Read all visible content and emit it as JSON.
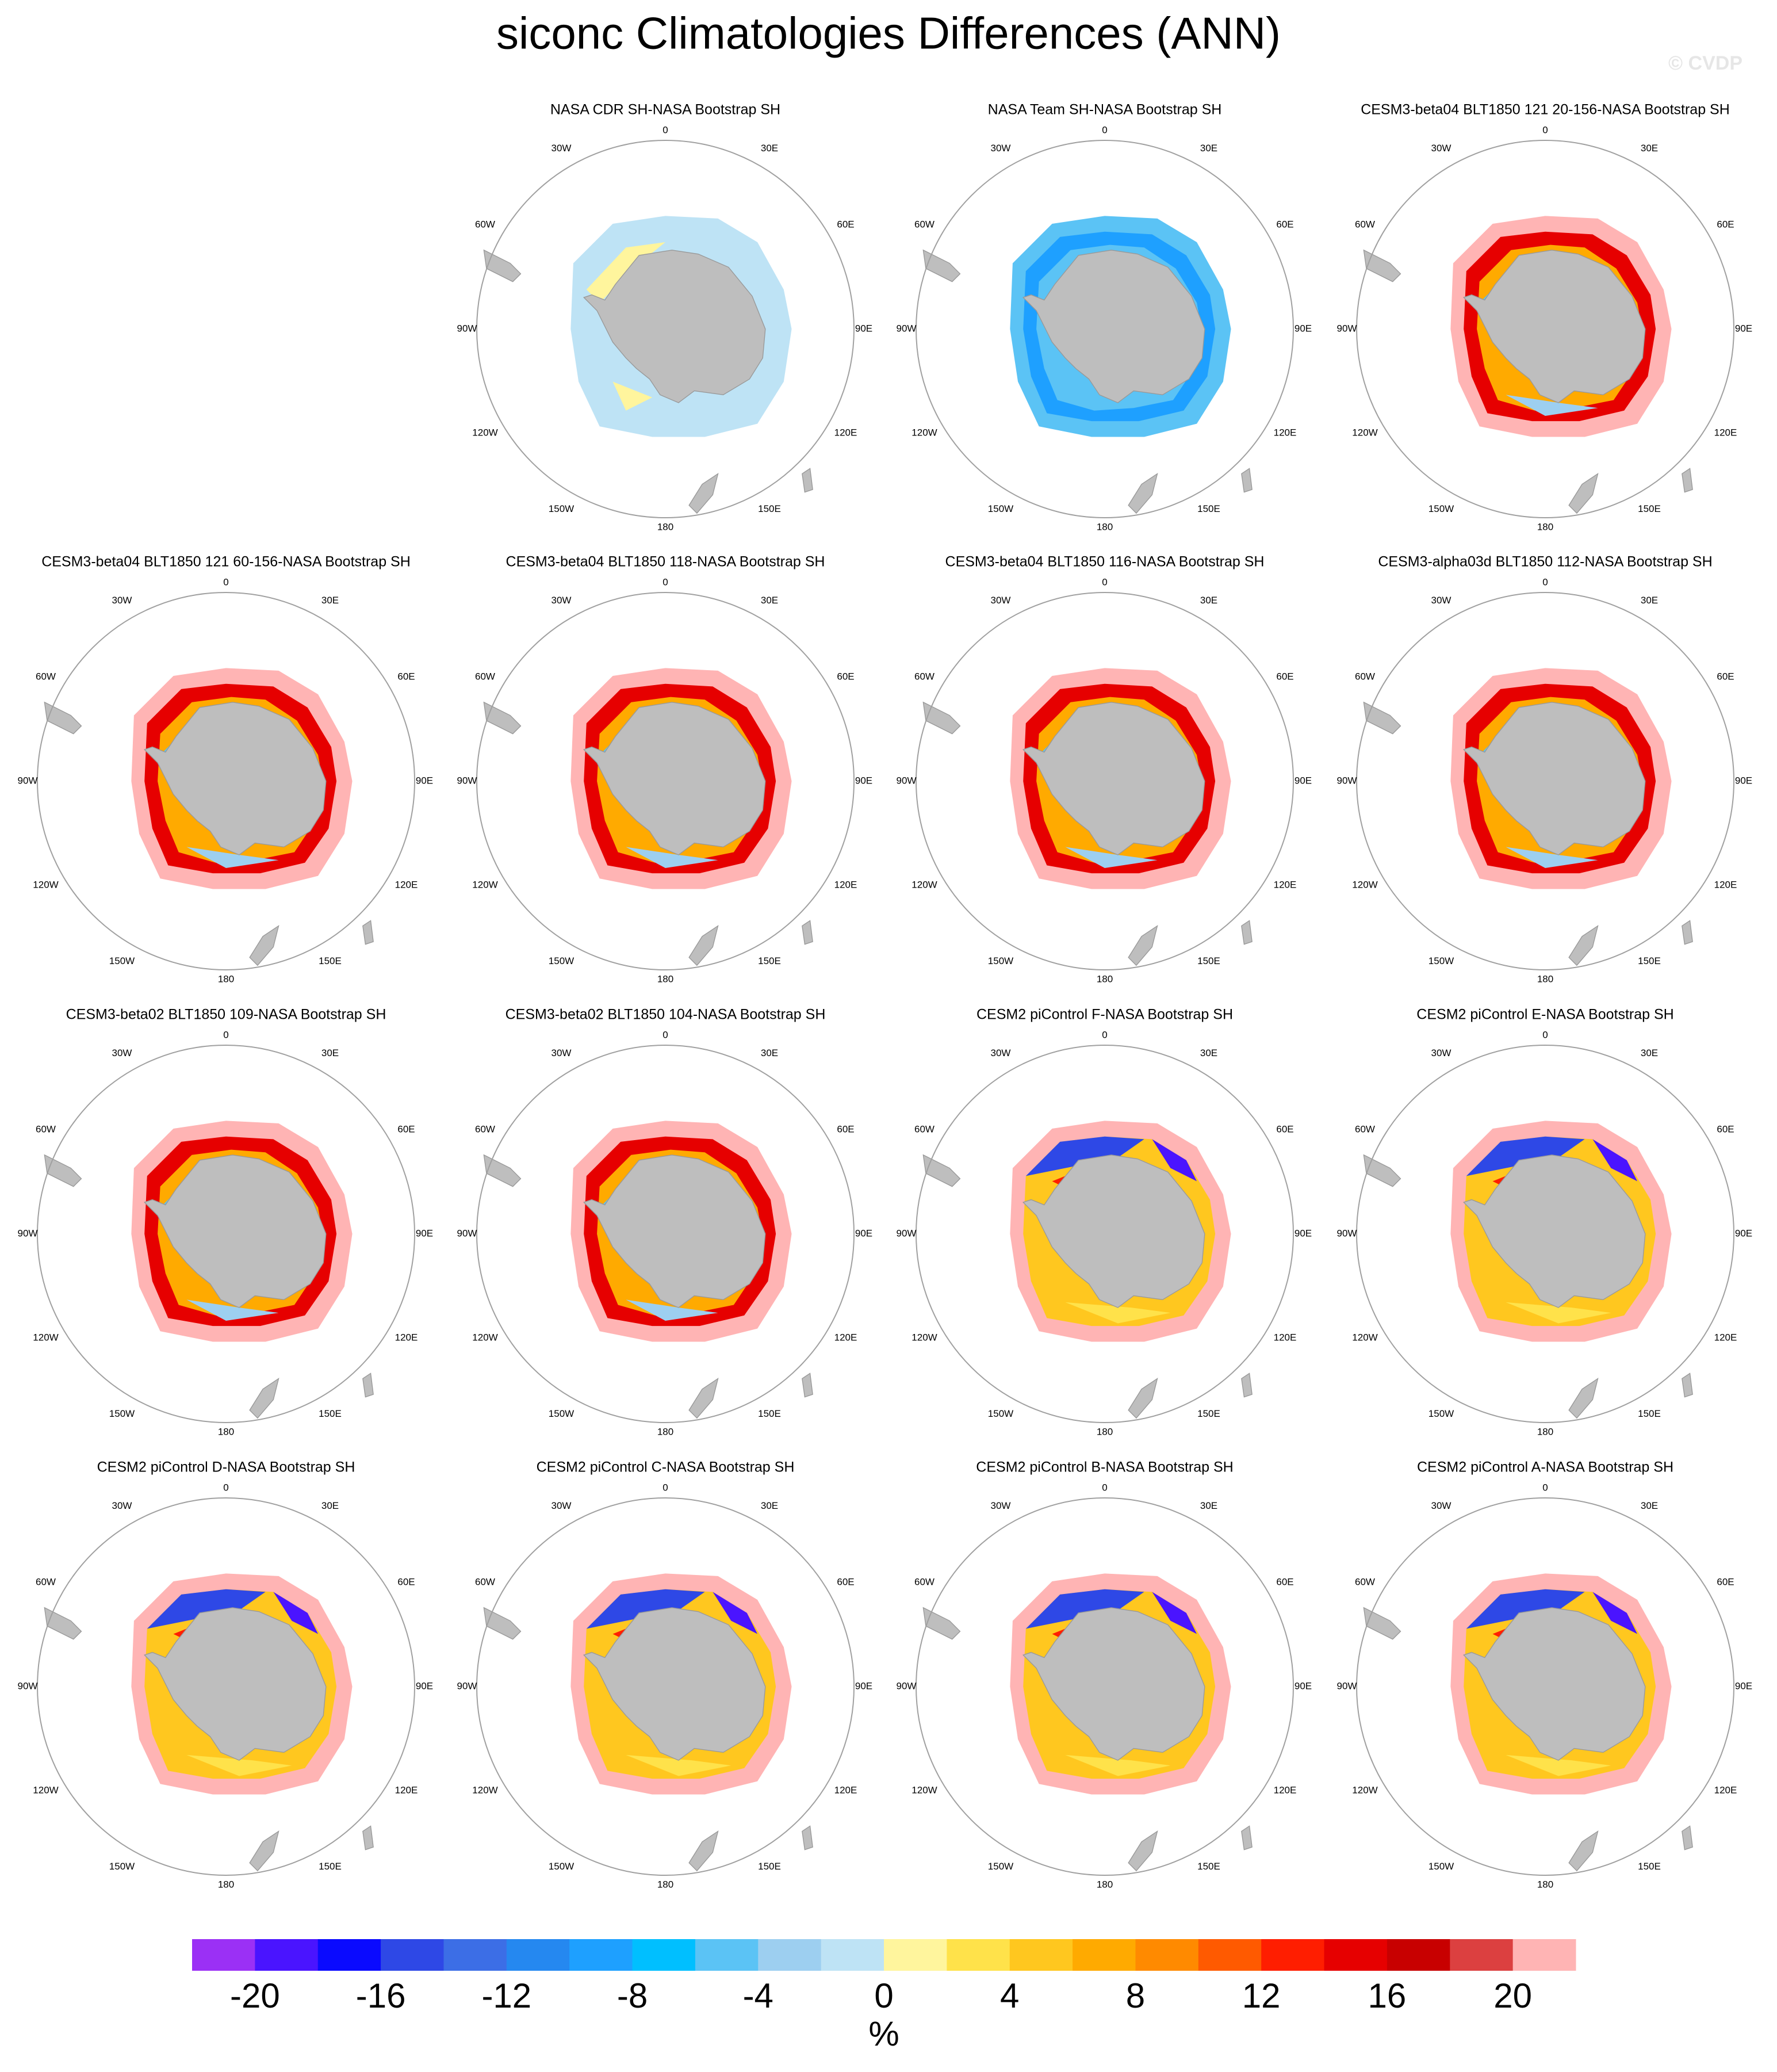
{
  "title": "siconc Climatologies Differences (ANN)",
  "watermark": "© CVDP",
  "lon_labels": [
    "0",
    "30E",
    "60E",
    "90E",
    "120E",
    "150E",
    "180",
    "150W",
    "120W",
    "90W",
    "60W",
    "30W"
  ],
  "panels": [
    {
      "title": "NASA CDR SH-NASA Bootstrap SH"
    },
    {
      "title": "NASA Team SH-NASA Bootstrap SH"
    },
    {
      "title": "CESM3-beta04 BLT1850 121 20-156-NASA Bootstrap SH"
    },
    {
      "title": "CESM3-beta04 BLT1850 121 60-156-NASA Bootstrap SH"
    },
    {
      "title": "CESM3-beta04 BLT1850 118-NASA Bootstrap SH"
    },
    {
      "title": "CESM3-beta04 BLT1850 116-NASA Bootstrap SH"
    },
    {
      "title": "CESM3-alpha03d BLT1850 112-NASA Bootstrap SH"
    },
    {
      "title": "CESM3-beta02 BLT1850 109-NASA Bootstrap SH"
    },
    {
      "title": "CESM3-beta02 BLT1850 104-NASA Bootstrap SH"
    },
    {
      "title": "CESM2 piControl F-NASA Bootstrap SH"
    },
    {
      "title": "CESM2 piControl E-NASA Bootstrap SH"
    },
    {
      "title": "CESM2 piControl D-NASA Bootstrap SH"
    },
    {
      "title": "CESM2 piControl C-NASA Bootstrap SH"
    },
    {
      "title": "CESM2 piControl B-NASA Bootstrap SH"
    },
    {
      "title": "CESM2 piControl A-NASA Bootstrap SH"
    }
  ],
  "chart_data": {
    "type": "colorbar",
    "label": "%",
    "colors": [
      "#9b30f5",
      "#4a14ff",
      "#0a0aff",
      "#2e48e6",
      "#3c6ee6",
      "#2588f0",
      "#1ea0ff",
      "#00bfff",
      "#5bc3f5",
      "#9dcff0",
      "#bee3f5",
      "#fff59d",
      "#ffe24a",
      "#ffc71f",
      "#ffaa00",
      "#ff8a00",
      "#ff5a00",
      "#ff1e00",
      "#e60000",
      "#c80000",
      "#dc4040",
      "#ffb4b4"
    ],
    "xlim": [
      -22,
      22
    ],
    "xticks": [
      -20,
      -16,
      -12,
      -8,
      -4,
      0,
      4,
      8,
      12,
      16,
      20
    ]
  }
}
